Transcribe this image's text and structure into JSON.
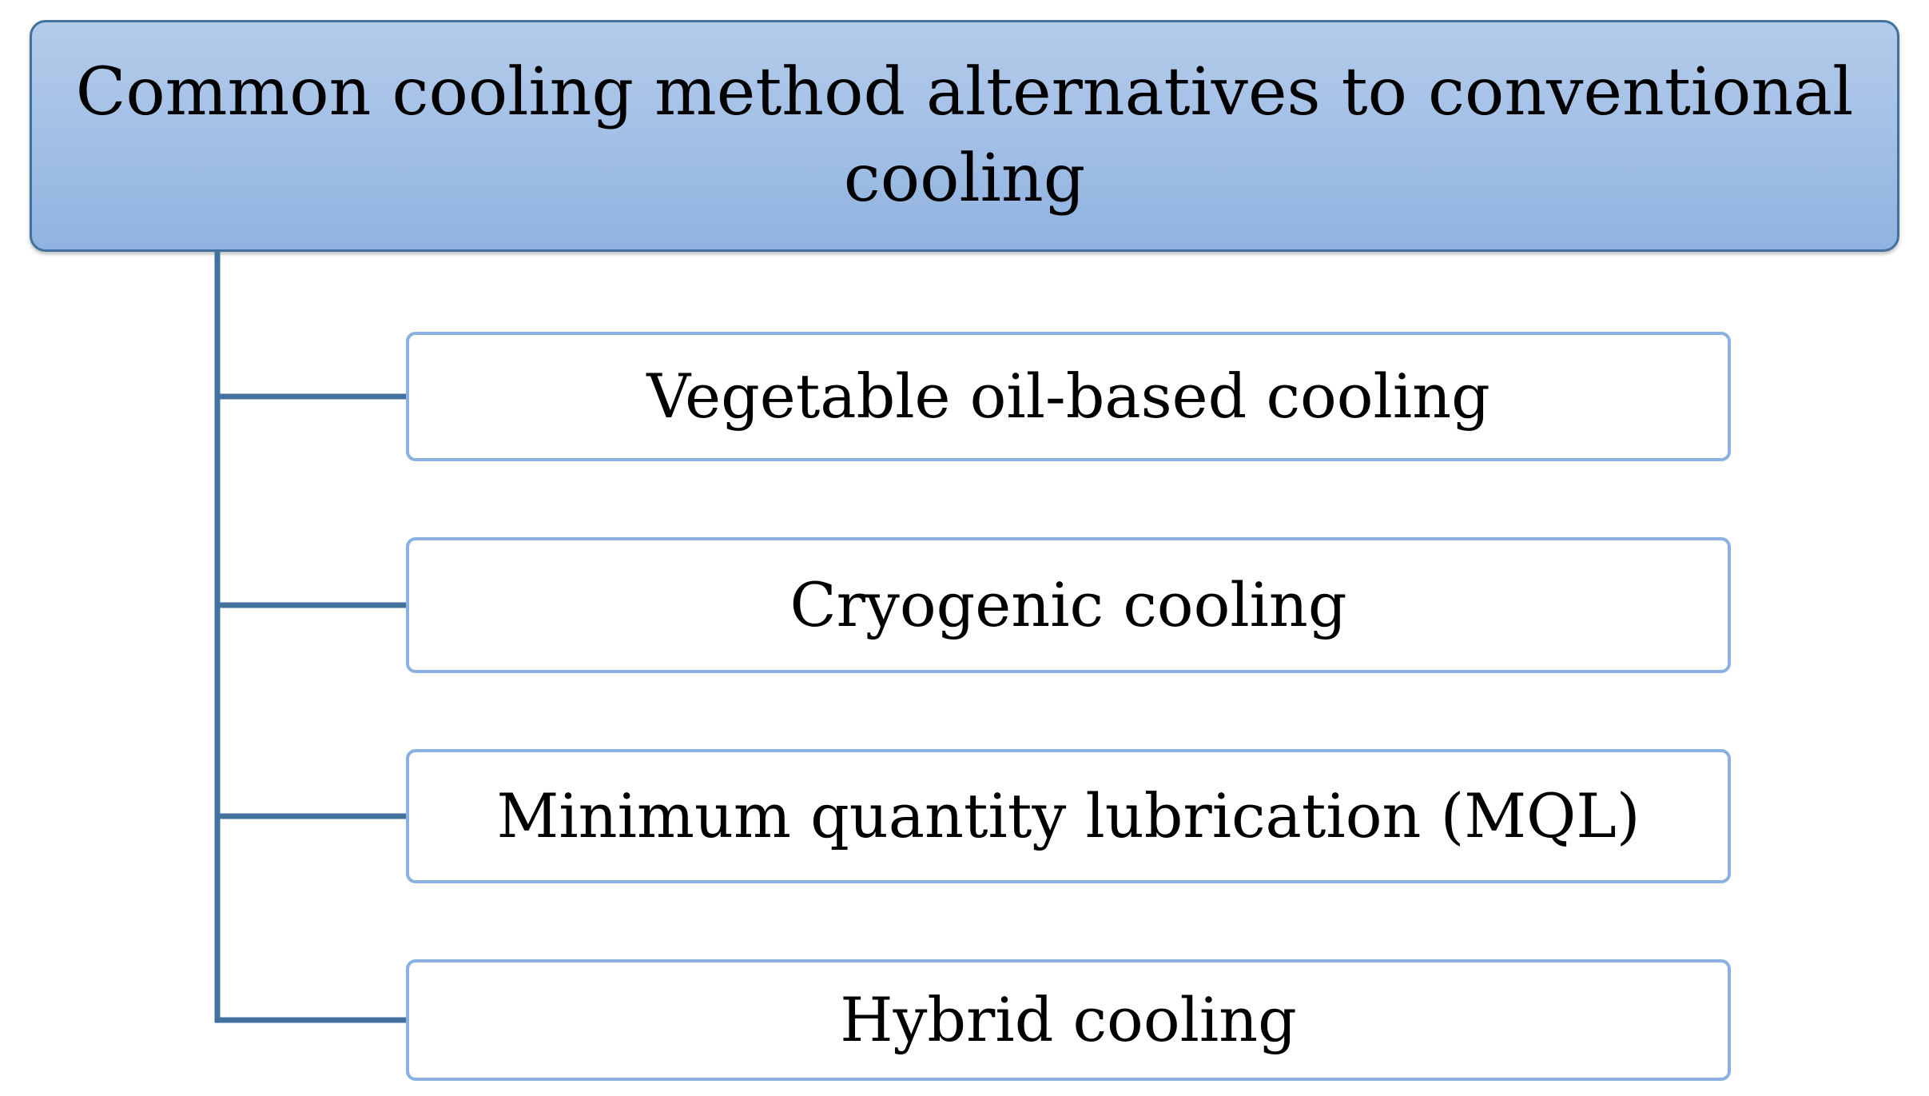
{
  "root": {
    "title_line1": "Common cooling method alternatives to conventional",
    "title_line2": "cooling"
  },
  "children": [
    {
      "label": "Vegetable oil-based cooling"
    },
    {
      "label": "Cryogenic cooling"
    },
    {
      "label": "Minimum quantity lubrication (MQL)"
    },
    {
      "label": "Hybrid cooling"
    }
  ],
  "colors": {
    "root_fill": "#a3c0e6",
    "root_border": "#41719c",
    "child_border": "#8ab1df",
    "connector": "#41719c"
  }
}
